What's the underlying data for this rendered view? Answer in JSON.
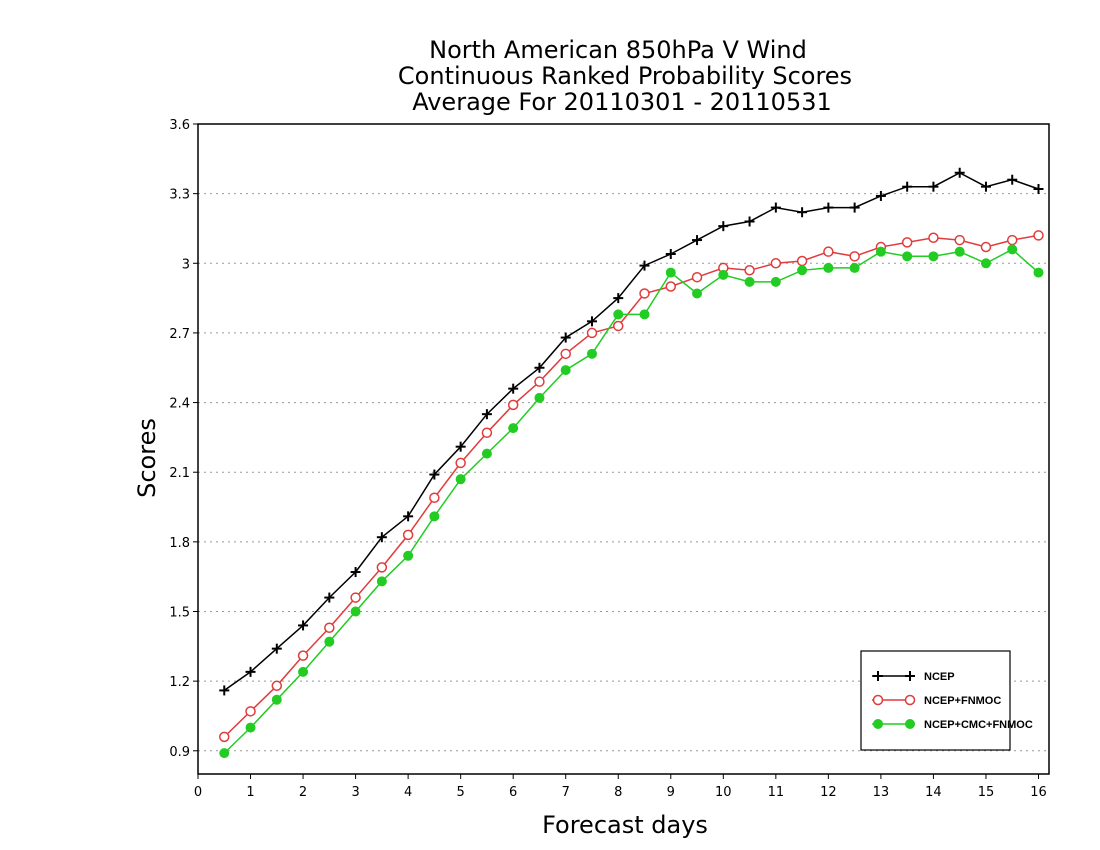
{
  "chart_data": {
    "type": "line",
    "title_lines": [
      "North American 850hPa V Wind",
      "Continuous Ranked Probability Scores",
      "Average For 20110301 - 20110531"
    ],
    "xlabel": "Forecast days",
    "ylabel": "Scores",
    "xlim": [
      0,
      16.2
    ],
    "ylim": [
      0.8,
      3.6
    ],
    "x_ticks": [
      0,
      1,
      2,
      3,
      4,
      5,
      6,
      7,
      8,
      9,
      10,
      11,
      12,
      13,
      14,
      15,
      16
    ],
    "y_ticks": [
      0.9,
      1.2,
      1.5,
      1.8,
      2.1,
      2.4,
      2.7,
      3,
      3.3,
      3.6
    ],
    "y_tick_labels": [
      "0.9",
      "1.2",
      "1.5",
      "1.8",
      "2.1",
      "2.4",
      "2.7",
      "3",
      "3.3",
      "3.6"
    ],
    "grid": "horizontal dotted",
    "legend_position": "bottom-right",
    "x": [
      0.5,
      1,
      1.5,
      2,
      2.5,
      3,
      3.5,
      4,
      4.5,
      5,
      5.5,
      6,
      6.5,
      7,
      7.5,
      8,
      8.5,
      9,
      9.5,
      10,
      10.5,
      11,
      11.5,
      12,
      12.5,
      13,
      13.5,
      14,
      14.5,
      15,
      15.5,
      16
    ],
    "series": [
      {
        "name": "NCEP",
        "color": "#000000",
        "marker": "plus",
        "values": [
          1.16,
          1.24,
          1.34,
          1.44,
          1.56,
          1.67,
          1.82,
          1.91,
          2.09,
          2.21,
          2.35,
          2.46,
          2.55,
          2.68,
          2.75,
          2.85,
          2.99,
          3.04,
          3.1,
          3.16,
          3.18,
          3.24,
          3.22,
          3.24,
          3.24,
          3.29,
          3.33,
          3.33,
          3.39,
          3.33,
          3.36,
          3.32
        ]
      },
      {
        "name": "NCEP+FNMOC",
        "color": "#e03c3c",
        "marker": "open-circle",
        "values": [
          0.96,
          1.07,
          1.18,
          1.31,
          1.43,
          1.56,
          1.69,
          1.83,
          1.99,
          2.14,
          2.27,
          2.39,
          2.49,
          2.61,
          2.7,
          2.73,
          2.87,
          2.9,
          2.94,
          2.98,
          2.97,
          3.0,
          3.01,
          3.05,
          3.03,
          3.07,
          3.09,
          3.11,
          3.1,
          3.07,
          3.1,
          3.12
        ]
      },
      {
        "name": "NCEP+CMC+FNMOC",
        "color": "#22cc22",
        "marker": "filled-circle",
        "values": [
          0.89,
          1.0,
          1.12,
          1.24,
          1.37,
          1.5,
          1.63,
          1.74,
          1.91,
          2.07,
          2.18,
          2.29,
          2.42,
          2.54,
          2.61,
          2.78,
          2.78,
          2.96,
          2.87,
          2.95,
          2.92,
          2.92,
          2.97,
          2.98,
          2.98,
          3.05,
          3.03,
          3.03,
          3.05,
          3.0,
          3.06,
          2.96
        ]
      }
    ]
  }
}
